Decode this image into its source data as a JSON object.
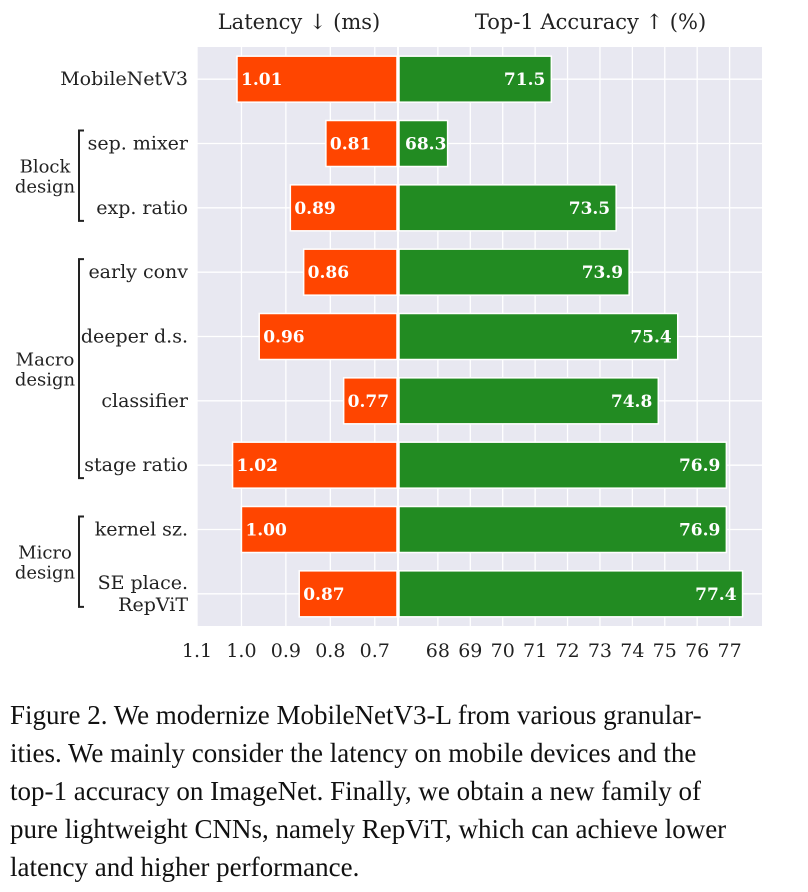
{
  "chart_data": {
    "type": "bar",
    "layout": "diverging-horizontal",
    "panels": [
      {
        "title": "Latency ↓ (ms)",
        "xlim": [
          1.1,
          0.65
        ],
        "ticks": [
          "1.1",
          "1.0",
          "0.9",
          "0.8",
          "0.7"
        ],
        "tick_values": [
          1.1,
          1.0,
          0.9,
          0.8,
          0.7
        ],
        "color": "#ff4500",
        "values": [
          1.01,
          0.81,
          0.89,
          0.86,
          0.96,
          0.77,
          1.02,
          1.0,
          0.87
        ],
        "labels": [
          "1.01",
          "0.81",
          "0.89",
          "0.86",
          "0.96",
          "0.77",
          "1.02",
          "1.00",
          "0.87"
        ]
      },
      {
        "title": "Top-1 Accuracy ↑ (%)",
        "xlim": [
          66.8,
          78.0
        ],
        "ticks": [
          "68",
          "69",
          "70",
          "71",
          "72",
          "73",
          "74",
          "75",
          "76",
          "77"
        ],
        "tick_values": [
          68,
          69,
          70,
          71,
          72,
          73,
          74,
          75,
          76,
          77
        ],
        "color": "#228b22",
        "values": [
          71.5,
          68.3,
          73.5,
          73.9,
          75.4,
          74.8,
          76.9,
          76.9,
          77.4
        ],
        "labels": [
          "71.5",
          "68.3",
          "73.5",
          "73.9",
          "75.4",
          "74.8",
          "76.9",
          "76.9",
          "77.4"
        ]
      }
    ],
    "categories": [
      [
        "MobileNetV3"
      ],
      [
        "sep. mixer"
      ],
      [
        "exp. ratio"
      ],
      [
        "early conv"
      ],
      [
        "deeper d.s."
      ],
      [
        "classifier"
      ],
      [
        "stage ratio"
      ],
      [
        "kernel sz."
      ],
      [
        "SE place.",
        "RepViT"
      ]
    ],
    "groups": [
      {
        "lines": [
          "Block",
          "design"
        ],
        "from": 1,
        "to": 2
      },
      {
        "lines": [
          "Macro",
          "design"
        ],
        "from": 3,
        "to": 6
      },
      {
        "lines": [
          "Micro",
          "design"
        ],
        "from": 7,
        "to": 8
      }
    ],
    "colors": {
      "panel_bg": "#e8e8f1",
      "grid": "#ffffff"
    }
  },
  "caption": {
    "lines": [
      "Figure 2.  We modernize MobileNetV3-L from various granular-",
      "ities.  We mainly consider the latency on mobile devices and the",
      "top-1 accuracy on ImageNet. Finally, we obtain a new family of",
      "pure lightweight CNNs, namely RepViT, which can achieve lower",
      "latency and higher performance."
    ]
  }
}
